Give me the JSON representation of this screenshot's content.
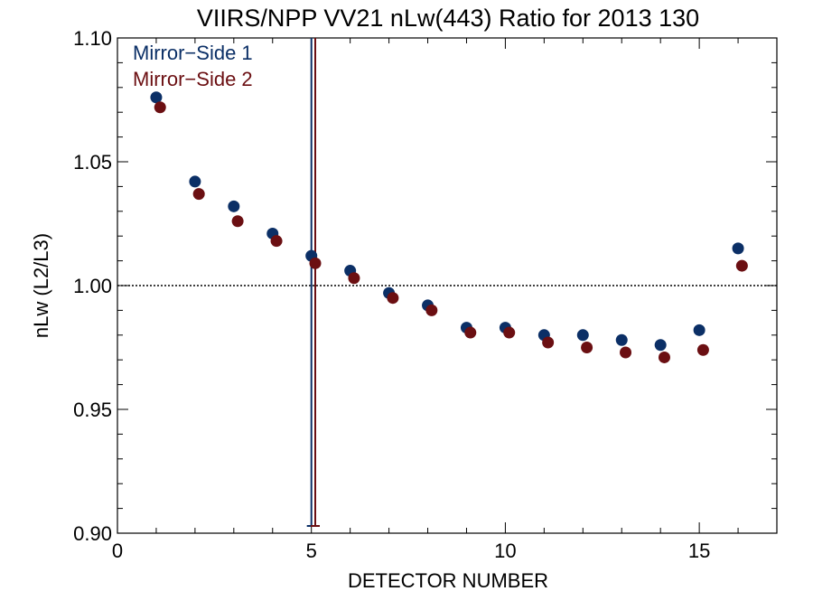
{
  "chart_data": {
    "type": "scatter",
    "title": "VIIRS/NPP VV21 nLw(443) Ratio for 2013 130",
    "xlabel": "DETECTOR NUMBER",
    "ylabel": "nLw (L2/L3)",
    "xlim": [
      0,
      17
    ],
    "ylim": [
      0.9,
      1.1
    ],
    "x_ticks": [
      0,
      5,
      10,
      15
    ],
    "x_tick_labels": [
      "0",
      "5",
      "10",
      "15"
    ],
    "y_ticks": [
      0.9,
      0.95,
      1.0,
      1.05,
      1.1
    ],
    "y_tick_labels": [
      "0.90",
      "0.95",
      "1.00",
      "1.05",
      "1.10"
    ],
    "reference_line": {
      "y": 1.0,
      "style": "dotted"
    },
    "grid": false,
    "legend_position": "top-left",
    "series": [
      {
        "name": "Mirror−Side 1",
        "color": "#0b2f66",
        "x": [
          1,
          2,
          3,
          4,
          5,
          6,
          7,
          8,
          9,
          10,
          11,
          12,
          13,
          14,
          15,
          16
        ],
        "y": [
          1.076,
          1.042,
          1.032,
          1.021,
          1.012,
          1.006,
          0.997,
          0.992,
          0.983,
          0.983,
          0.98,
          0.98,
          0.978,
          0.976,
          0.982,
          1.015
        ],
        "vline_x": 5.0
      },
      {
        "name": "Mirror−Side 2",
        "color": "#6b0f12",
        "x": [
          1.1,
          2.1,
          3.1,
          4.1,
          5.1,
          6.1,
          7.1,
          8.1,
          9.1,
          10.1,
          11.1,
          12.1,
          13.1,
          14.1,
          15.1,
          16.1
        ],
        "y": [
          1.072,
          1.037,
          1.026,
          1.018,
          1.009,
          1.003,
          0.995,
          0.99,
          0.981,
          0.981,
          0.977,
          0.975,
          0.973,
          0.971,
          0.974,
          1.008
        ],
        "vline_x": 5.1
      }
    ]
  }
}
